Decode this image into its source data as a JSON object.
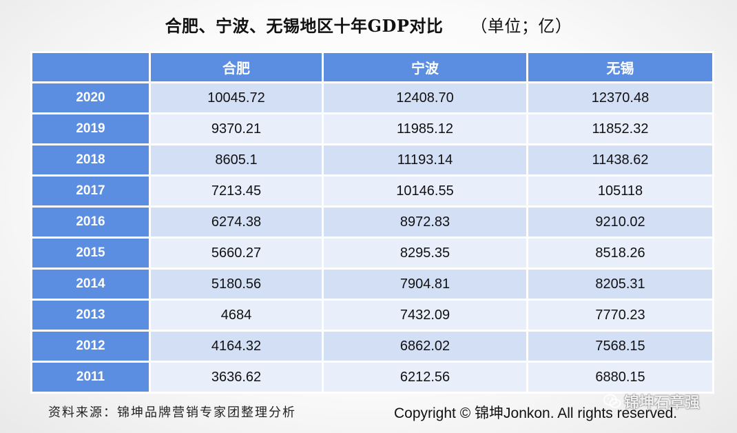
{
  "chart_data": {
    "type": "table",
    "title": "合肥、宁波、无锡地区十年GDP对比",
    "unit": "（单位；亿）",
    "columns": [
      "",
      "合肥",
      "宁波",
      "无锡"
    ],
    "rows": [
      {
        "year": "2020",
        "values": [
          "10045.72",
          "12408.70",
          "12370.48"
        ]
      },
      {
        "year": "2019",
        "values": [
          "9370.21",
          "11985.12",
          "11852.32"
        ]
      },
      {
        "year": "2018",
        "values": [
          "8605.1",
          "11193.14",
          "11438.62"
        ]
      },
      {
        "year": "2017",
        "values": [
          "7213.45",
          "10146.55",
          "105118"
        ]
      },
      {
        "year": "2016",
        "values": [
          "6274.38",
          "8972.83",
          "9210.02"
        ]
      },
      {
        "year": "2015",
        "values": [
          "5660.27",
          "8295.35",
          "8518.26"
        ]
      },
      {
        "year": "2014",
        "values": [
          "5180.56",
          "7904.81",
          "8205.31"
        ]
      },
      {
        "year": "2013",
        "values": [
          "4684",
          "7432.09",
          "7770.23"
        ]
      },
      {
        "year": "2012",
        "values": [
          "4164.32",
          "6862.02",
          "7568.15"
        ]
      },
      {
        "year": "2011",
        "values": [
          "3636.62",
          "6212.56",
          "6880.15"
        ]
      }
    ],
    "header_color": "#5b8ee0",
    "row_colors": [
      "#d3dff5",
      "#e8eefa"
    ]
  },
  "footer": {
    "source": "资料来源：锦坤品牌营销专家团整理分析",
    "copyright": "Copyright © 锦坤Jonkon. All rights reserved.",
    "watermark": "锦坤石章强",
    "watermark_icon": "wechat-icon"
  }
}
